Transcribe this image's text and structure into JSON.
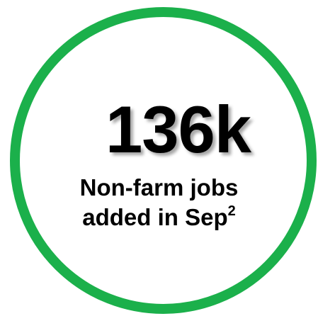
{
  "stat": {
    "value": "136k",
    "caption_line1": "Non-farm jobs",
    "caption_line2": "added in Sep",
    "footnote": "2"
  },
  "colors": {
    "ring": "#1bb04b",
    "text": "#000000",
    "background": "#ffffff"
  }
}
